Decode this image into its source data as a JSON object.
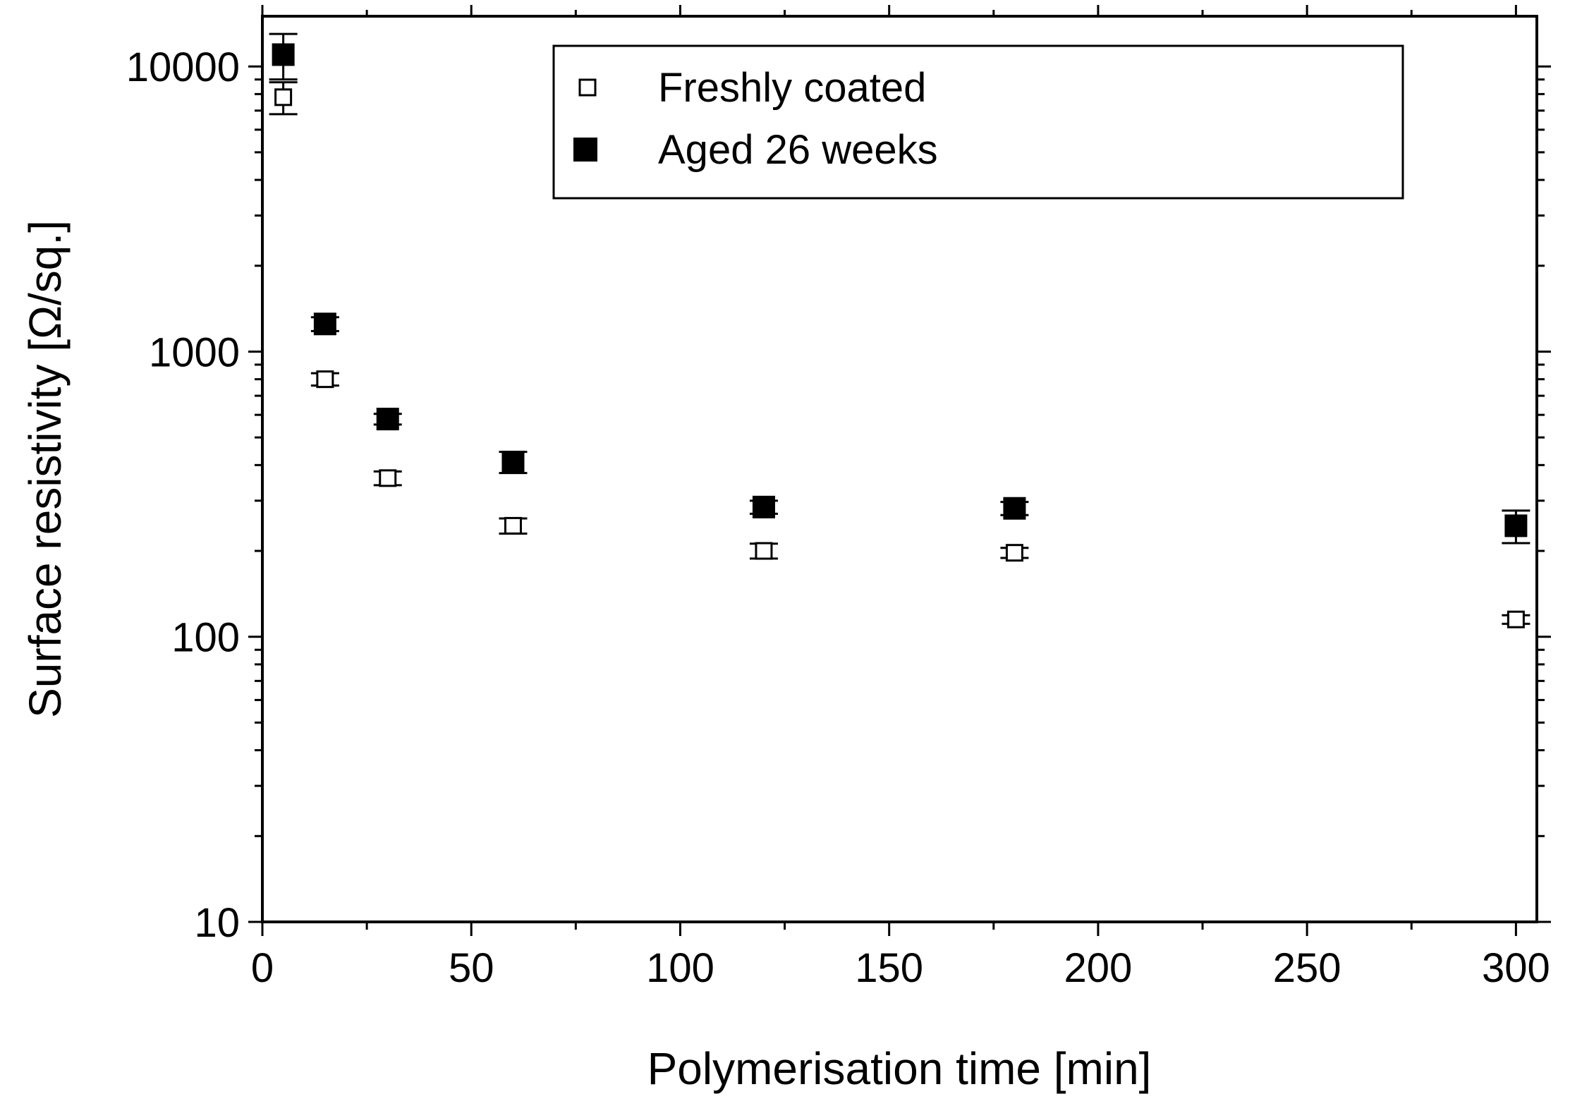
{
  "chart_data": {
    "type": "scatter",
    "xlabel": "Polymerisation time [min]",
    "ylabel": "Surface resistivity [Ω/sq.]",
    "xlim": [
      0,
      305
    ],
    "ylim": [
      10,
      15000
    ],
    "yscale": "log",
    "x_ticks": [
      0,
      50,
      100,
      150,
      200,
      250,
      300
    ],
    "x_tick_labels": [
      "0",
      "50",
      "100",
      "150",
      "200",
      "250",
      "300"
    ],
    "y_ticks": [
      10,
      100,
      1000,
      10000
    ],
    "y_tick_labels": [
      "10",
      "100",
      "1000",
      "10000"
    ],
    "grid": false,
    "legend_position": "top-right",
    "series": [
      {
        "name": "Freshly coated",
        "marker": "open-square",
        "color": "#000000",
        "points": [
          {
            "x": 5,
            "y": 7800,
            "err": 1000
          },
          {
            "x": 15,
            "y": 800,
            "err": 40
          },
          {
            "x": 30,
            "y": 360,
            "err": 20
          },
          {
            "x": 60,
            "y": 245,
            "err": 15
          },
          {
            "x": 120,
            "y": 200,
            "err": 12
          },
          {
            "x": 180,
            "y": 197,
            "err": 8
          },
          {
            "x": 300,
            "y": 115,
            "err": 4
          }
        ]
      },
      {
        "name": "Aged 26 weeks",
        "marker": "filled-square",
        "color": "#000000",
        "points": [
          {
            "x": 5,
            "y": 11000,
            "err": 2000
          },
          {
            "x": 15,
            "y": 1250,
            "err": 70
          },
          {
            "x": 30,
            "y": 580,
            "err": 25
          },
          {
            "x": 60,
            "y": 410,
            "err": 35
          },
          {
            "x": 120,
            "y": 285,
            "err": 15
          },
          {
            "x": 180,
            "y": 282,
            "err": 15
          },
          {
            "x": 300,
            "y": 245,
            "err": 32
          }
        ]
      }
    ]
  }
}
